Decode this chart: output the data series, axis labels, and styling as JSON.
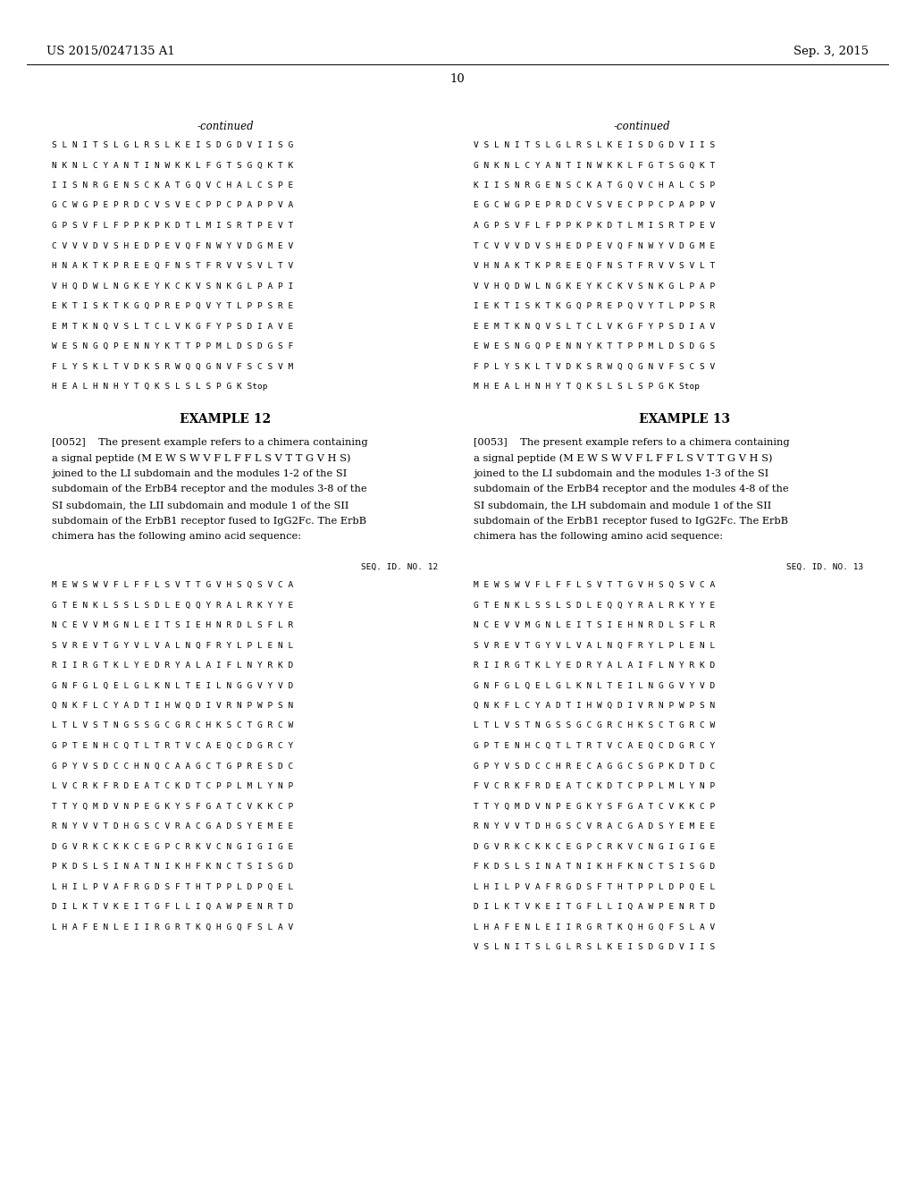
{
  "background_color": "#ffffff",
  "patent_number": "US 2015/0247135 A1",
  "date": "Sep. 3, 2015",
  "page_number": "10",
  "continued_left": "-continued",
  "continued_right": "-continued",
  "seq_left_lines": [
    "S L N I T S L G L R S L K E I S D G D V I I S G",
    "N K N L C Y A N T I N W K K L F G T S G Q K T K",
    "I I S N R G E N S C K A T G Q V C H A L C S P E",
    "G C W G P E P R D C V S V E C P P C P A P P V A",
    "G P S V F L F P P K P K D T L M I S R T P E V T",
    "C V V V D V S H E D P E V Q F N W Y V D G M E V",
    "H N A K T K P R E E Q F N S T F R V V S V L T V",
    "V H Q D W L N G K E Y K C K V S N K G L P A P I",
    "E K T I S K T K G Q P R E P Q V Y T L P P S R E",
    "E M T K N Q V S L T C L V K G F Y P S D I A V E",
    "W E S N G Q P E N N Y K T T P P M L D S D G S F",
    "F L Y S K L T V D K S R W Q Q G N V F S C S V M",
    "H E A L H N H Y T Q K S L S L S P G K Stop"
  ],
  "seq_right_lines": [
    "V S L N I T S L G L R S L K E I S D G D V I I S",
    "G N K N L C Y A N T I N W K K L F G T S G Q K T",
    "K I I S N R G E N S C K A T G Q V C H A L C S P",
    "E G C W G P E P R D C V S V E C P P C P A P P V",
    "A G P S V F L F P P K P K D T L M I S R T P E V",
    "T C V V V D V S H E D P E V Q F N W Y V D G M E",
    "V H N A K T K P R E E Q F N S T F R V V S V L T",
    "V V H Q D W L N G K E Y K C K V S N K G L P A P",
    "I E K T I S K T K G Q P R E P Q V Y T L P P S R",
    "E E M T K N Q V S L T C L V K G F Y P S D I A V",
    "E W E S N G Q P E N N Y K T T P P M L D S D G S",
    "F P L Y S K L T V D K S R W Q Q G N V F S C S V",
    "M H E A L H N H Y T Q K S L S L S P G K Stop"
  ],
  "example12_title": "EXAMPLE 12",
  "example12_para_lines": [
    "[0052]    The present example refers to a chimera containing",
    "a signal peptide (M E W S W V F L F F L S V T T G V H S)",
    "joined to the LI subdomain and the modules 1-2 of the SI",
    "subdomain of the ErbB4 receptor and the modules 3-8 of the",
    "SI subdomain, the LII subdomain and module 1 of the SII",
    "subdomain of the ErbB1 receptor fused to IgG2Fc. The ErbB",
    "chimera has the following amino acid sequence:"
  ],
  "example13_title": "EXAMPLE 13",
  "example13_para_lines": [
    "[0053]    The present example refers to a chimera containing",
    "a signal peptide (M E W S W V F L F F L S V T T G V H S)",
    "joined to the LI subdomain and the modules 1-3 of the SI",
    "subdomain of the ErbB4 receptor and the modules 4-8 of the",
    "SI subdomain, the LH subdomain and module 1 of the SII",
    "subdomain of the ErbB1 receptor fused to IgG2Fc. The ErbB",
    "chimera has the following amino acid sequence:"
  ],
  "seq12_label": "SEQ. ID. NO. 12",
  "seq12_lines": [
    "M E W S W V F L F F L S V T T G V H S Q S V C A",
    "G T E N K L S S L S D L E Q Q Y R A L R K Y Y E",
    "N C E V V M G N L E I T S I E H N R D L S F L R",
    "S V R E V T G Y V L V A L N Q F R Y L P L E N L",
    "R I I R G T K L Y E D R Y A L A I F L N Y R K D",
    "G N F G L Q E L G L K N L T E I L N G G V Y V D",
    "Q N K F L C Y A D T I H W Q D I V R N P W P S N",
    "L T L V S T N G S S G C G R C H K S C T G R C W",
    "G P T E N H C Q T L T R T V C A E Q C D G R C Y",
    "G P Y V S D C C H N Q C A A G C T G P R E S D C",
    "L V C R K F R D E A T C K D T C P P L M L Y N P",
    "T T Y Q M D V N P E G K Y S F G A T C V K K C P",
    "R N Y V V T D H G S C V R A C G A D S Y E M E E",
    "D G V R K C K K C E G P C R K V C N G I G I G E",
    "P K D S L S I N A T N I K H F K N C T S I S G D",
    "L H I L P V A F R G D S F T H T P P L D P Q E L",
    "D I L K T V K E I T G F L L I Q A W P E N R T D",
    "L H A F E N L E I I R G R T K Q H G Q F S L A V"
  ],
  "seq13_label": "SEQ. ID. NO. 13",
  "seq13_lines": [
    "M E W S W V F L F F L S V T T G V H S Q S V C A",
    "G T E N K L S S L S D L E Q Q Y R A L R K Y Y E",
    "N C E V V M G N L E I T S I E H N R D L S F L R",
    "S V R E V T G Y V L V A L N Q F R Y L P L E N L",
    "R I I R G T K L Y E D R Y A L A I F L N Y R K D",
    "G N F G L Q E L G L K N L T E I L N G G V Y V D",
    "Q N K F L C Y A D T I H W Q D I V R N P W P S N",
    "L T L V S T N G S S G C G R C H K S C T G R C W",
    "G P T E N H C Q T L T R T V C A E Q C D G R C Y",
    "G P Y V S D C C H R E C A G G C S G P K D T D C",
    "F V C R K F R D E A T C K D T C P P L M L Y N P",
    "T T Y Q M D V N P E G K Y S F G A T C V K K C P",
    "R N Y V V T D H G S C V R A C G A D S Y E M E E",
    "D G V R K C K K C E G P C R K V C N G I G I G E",
    "F K D S L S I N A T N I K H F K N C T S I S G D",
    "L H I L P V A F R G D S F T H T P P L D P Q E L",
    "D I L K T V K E I T G F L L I Q A W P E N R T D",
    "L H A F E N L E I I R G R T K Q H G Q F S L A V",
    "V S L N I T S L G L R S L K E I S D G D V I I S"
  ]
}
